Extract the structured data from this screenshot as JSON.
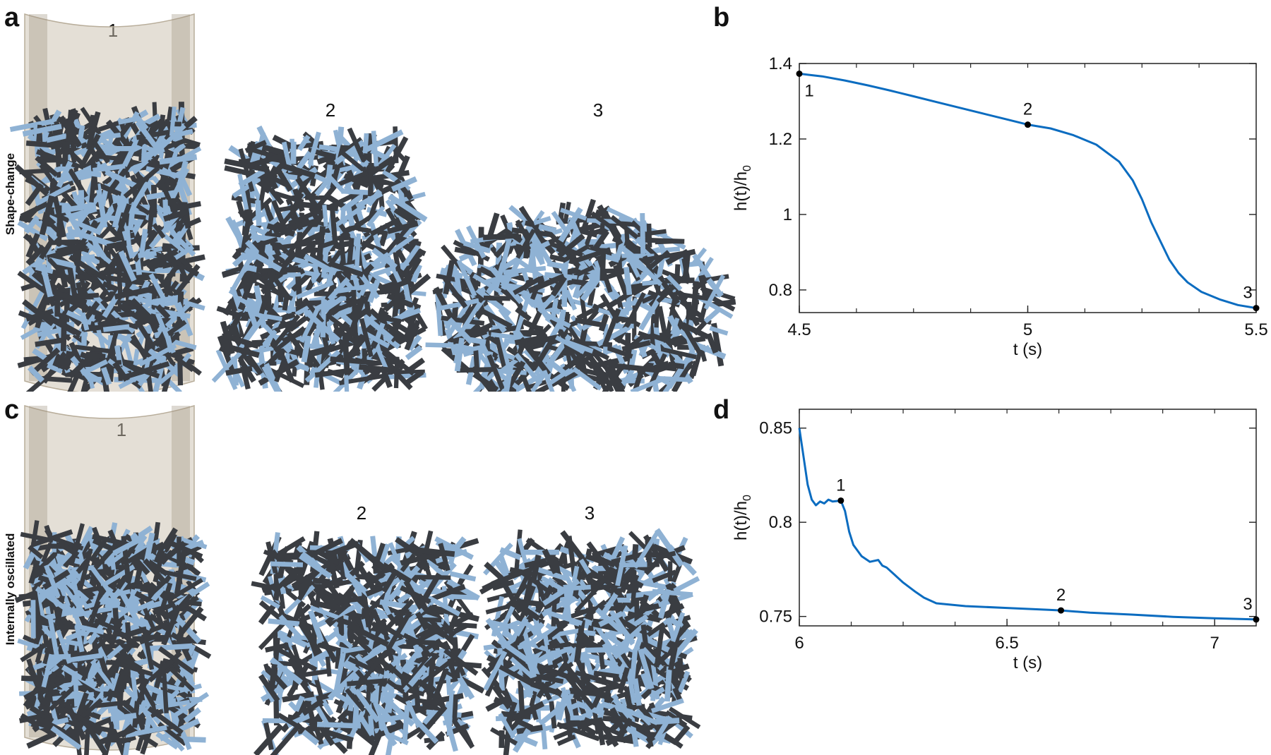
{
  "panels": {
    "a": {
      "letter": "a",
      "row_label": "Shape-change",
      "frame_labels": [
        "1",
        "2",
        "3"
      ]
    },
    "b": {
      "letter": "b"
    },
    "c": {
      "letter": "c",
      "row_label": "Internally oscillated",
      "frame_labels": [
        "1",
        "2",
        "3"
      ]
    },
    "d": {
      "letter": "d"
    }
  },
  "colors": {
    "rod_dark": "#3a3d42",
    "rod_light": "#8fb2d4",
    "container": "#c9bfae",
    "line": "#0b6cc0",
    "marker": "#000000"
  },
  "chart_data": [
    {
      "panel": "b",
      "type": "line",
      "xlabel": "t (s)",
      "ylabel": "h(t)/h",
      "ylabel_sub": "0",
      "xlim": [
        4.5,
        5.5
      ],
      "ylim": [
        0.74,
        1.4
      ],
      "xticks": [
        4.5,
        5,
        5.5
      ],
      "xtick_labels": [
        "4.5",
        "5",
        "5.5"
      ],
      "yticks": [
        0.8,
        1.0,
        1.2,
        1.4
      ],
      "ytick_labels": [
        "0.8",
        "1",
        "1.2",
        "1.4"
      ],
      "series": [
        {
          "x": [
            4.5,
            4.52,
            4.55,
            4.6,
            4.65,
            4.7,
            4.75,
            4.8,
            4.85,
            4.9,
            4.95,
            5.0,
            5.05,
            5.1,
            5.15,
            5.2,
            5.23,
            5.25,
            5.27,
            5.29,
            5.31,
            5.33,
            5.35,
            5.38,
            5.42,
            5.46,
            5.5
          ],
          "y": [
            1.373,
            1.37,
            1.366,
            1.355,
            1.342,
            1.328,
            1.313,
            1.298,
            1.283,
            1.268,
            1.253,
            1.238,
            1.228,
            1.21,
            1.185,
            1.14,
            1.09,
            1.04,
            0.98,
            0.93,
            0.88,
            0.845,
            0.82,
            0.795,
            0.775,
            0.76,
            0.752
          ]
        }
      ],
      "markers": [
        {
          "label": "1",
          "x": 4.5,
          "y": 1.373
        },
        {
          "label": "2",
          "x": 5.0,
          "y": 1.238
        },
        {
          "label": "3",
          "x": 5.5,
          "y": 0.752
        }
      ]
    },
    {
      "panel": "d",
      "type": "line",
      "xlabel": "t (s)",
      "ylabel": "h(t)/h",
      "ylabel_sub": "0",
      "xlim": [
        6.0,
        7.1
      ],
      "ylim": [
        0.745,
        0.86
      ],
      "xticks": [
        6.0,
        6.5,
        7.0
      ],
      "xtick_labels": [
        "6",
        "6.5",
        "7"
      ],
      "yticks": [
        0.75,
        0.8,
        0.85
      ],
      "ytick_labels": [
        "0.75",
        "0.8",
        "0.85"
      ],
      "series": [
        {
          "x": [
            6.0,
            6.01,
            6.02,
            6.03,
            6.04,
            6.05,
            6.06,
            6.07,
            6.08,
            6.1,
            6.11,
            6.12,
            6.13,
            6.15,
            6.17,
            6.19,
            6.2,
            6.21,
            6.23,
            6.25,
            6.28,
            6.3,
            6.33,
            6.4,
            6.5,
            6.6,
            6.63,
            6.7,
            6.8,
            6.9,
            7.0,
            7.1
          ],
          "y": [
            0.85,
            0.835,
            0.82,
            0.812,
            0.809,
            0.811,
            0.81,
            0.812,
            0.811,
            0.8115,
            0.806,
            0.795,
            0.788,
            0.782,
            0.779,
            0.78,
            0.777,
            0.776,
            0.772,
            0.768,
            0.763,
            0.76,
            0.757,
            0.7555,
            0.7545,
            0.7535,
            0.7532,
            0.752,
            0.751,
            0.7498,
            0.749,
            0.7484
          ]
        }
      ],
      "markers": [
        {
          "label": "1",
          "x": 6.1,
          "y": 0.8115
        },
        {
          "label": "2",
          "x": 6.63,
          "y": 0.7532
        },
        {
          "label": "3",
          "x": 7.1,
          "y": 0.7484
        }
      ]
    }
  ]
}
